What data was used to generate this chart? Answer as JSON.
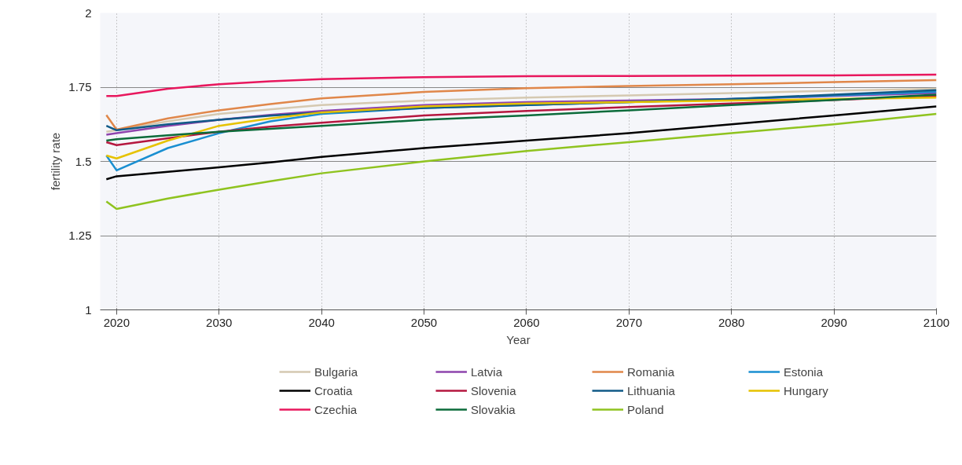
{
  "chart_data": {
    "type": "line",
    "xlabel": "Year",
    "ylabel": "fertility rate",
    "x": [
      2019,
      2020,
      2025,
      2030,
      2035,
      2040,
      2050,
      2060,
      2070,
      2080,
      2090,
      2100
    ],
    "xlim": [
      2018.4,
      2100
    ],
    "xticks": [
      2020,
      2030,
      2040,
      2050,
      2060,
      2070,
      2080,
      2090,
      2100
    ],
    "ylim": [
      1,
      2
    ],
    "yticks": [
      1,
      1.25,
      1.5,
      1.75,
      2
    ],
    "grid": true,
    "legend": "bottom",
    "marker": "none",
    "line_style": "solid",
    "series": [
      {
        "name": "Bulgaria",
        "color": "#d5c9b1",
        "values": [
          1.6,
          1.605,
          1.635,
          1.66,
          1.675,
          1.69,
          1.705,
          1.715,
          1.722,
          1.73,
          1.738,
          1.745
        ]
      },
      {
        "name": "Latvia",
        "color": "#8e44ad",
        "values": [
          1.59,
          1.595,
          1.62,
          1.64,
          1.657,
          1.67,
          1.69,
          1.7,
          1.705,
          1.71,
          1.72,
          1.73
        ]
      },
      {
        "name": "Romania",
        "color": "#e0874a",
        "values": [
          1.656,
          1.607,
          1.645,
          1.672,
          1.693,
          1.712,
          1.734,
          1.747,
          1.754,
          1.76,
          1.767,
          1.774
        ]
      },
      {
        "name": "Estonia",
        "color": "#1a8fd1",
        "values": [
          1.52,
          1.47,
          1.545,
          1.595,
          1.635,
          1.66,
          1.68,
          1.69,
          1.7,
          1.71,
          1.722,
          1.735
        ]
      },
      {
        "name": "Croatia",
        "color": "#000000",
        "values": [
          1.44,
          1.45,
          1.465,
          1.48,
          1.497,
          1.515,
          1.545,
          1.57,
          1.595,
          1.625,
          1.655,
          1.685
        ]
      },
      {
        "name": "Slovenia",
        "color": "#b5173f",
        "values": [
          1.565,
          1.555,
          1.578,
          1.6,
          1.617,
          1.63,
          1.655,
          1.67,
          1.683,
          1.695,
          1.707,
          1.72
        ]
      },
      {
        "name": "Lithuania",
        "color": "#105a87",
        "values": [
          1.62,
          1.605,
          1.625,
          1.64,
          1.654,
          1.665,
          1.68,
          1.69,
          1.7,
          1.71,
          1.725,
          1.74
        ]
      },
      {
        "name": "Hungary",
        "color": "#e6c200",
        "values": [
          1.52,
          1.51,
          1.57,
          1.62,
          1.645,
          1.665,
          1.685,
          1.695,
          1.7,
          1.705,
          1.71,
          1.715
        ]
      },
      {
        "name": "Czechia",
        "color": "#e8175d",
        "values": [
          1.72,
          1.72,
          1.745,
          1.76,
          1.77,
          1.777,
          1.784,
          1.787,
          1.788,
          1.789,
          1.79,
          1.792
        ]
      },
      {
        "name": "Slovakia",
        "color": "#0b6b3a",
        "values": [
          1.57,
          1.575,
          1.588,
          1.6,
          1.61,
          1.62,
          1.64,
          1.655,
          1.672,
          1.69,
          1.707,
          1.725
        ]
      },
      {
        "name": "Poland",
        "color": "#8fc31f",
        "values": [
          1.365,
          1.34,
          1.375,
          1.405,
          1.433,
          1.46,
          1.5,
          1.535,
          1.565,
          1.595,
          1.625,
          1.66
        ]
      }
    ]
  }
}
